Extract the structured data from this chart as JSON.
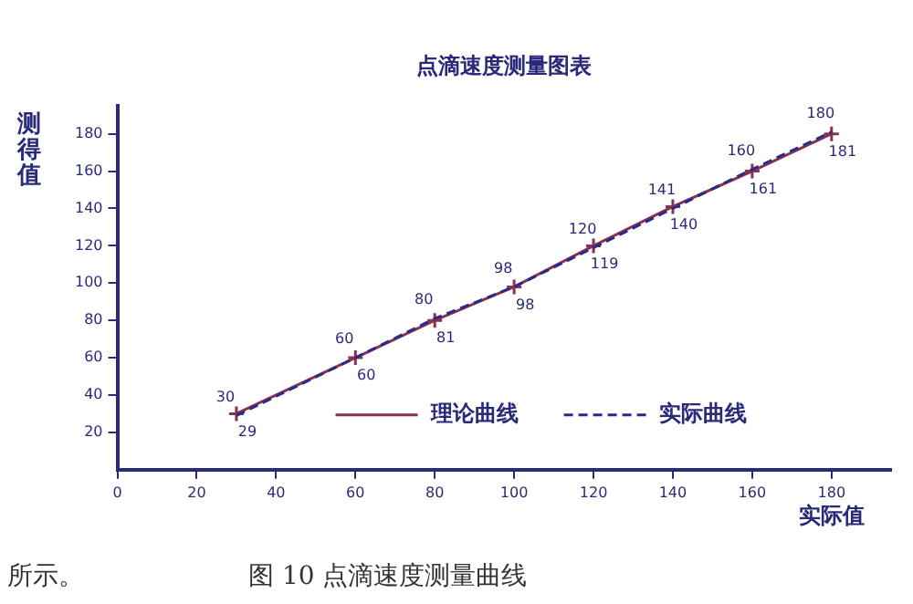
{
  "chart_data": {
    "type": "line",
    "title": "点滴速度测量图表",
    "xlabel": "实际值",
    "ylabel": "测得值",
    "x": [
      30,
      60,
      80,
      100,
      120,
      140,
      160,
      180
    ],
    "series": [
      {
        "name": "理论曲线",
        "color": "#8a3050",
        "marker": "cross",
        "line_style": "solid",
        "values": [
          30,
          60,
          80,
          98,
          120,
          141,
          160,
          180
        ]
      },
      {
        "name": "实际曲线",
        "color": "#2a2a8a",
        "marker": "none",
        "line_style": "dashed",
        "values": [
          29,
          60,
          81,
          98,
          119,
          140,
          161,
          181
        ]
      }
    ],
    "xlim": [
      0,
      195
    ],
    "xticks": [
      0,
      20,
      40,
      60,
      80,
      100,
      120,
      140,
      160,
      180
    ],
    "ylim": [
      0,
      195
    ],
    "yticks": [
      20,
      40,
      60,
      80,
      100,
      120,
      140,
      160,
      180
    ],
    "grid": false,
    "legend": "bottom",
    "data_labels": true,
    "annotations": [
      "所示。",
      "图 10 点滴速度测量曲线"
    ]
  }
}
